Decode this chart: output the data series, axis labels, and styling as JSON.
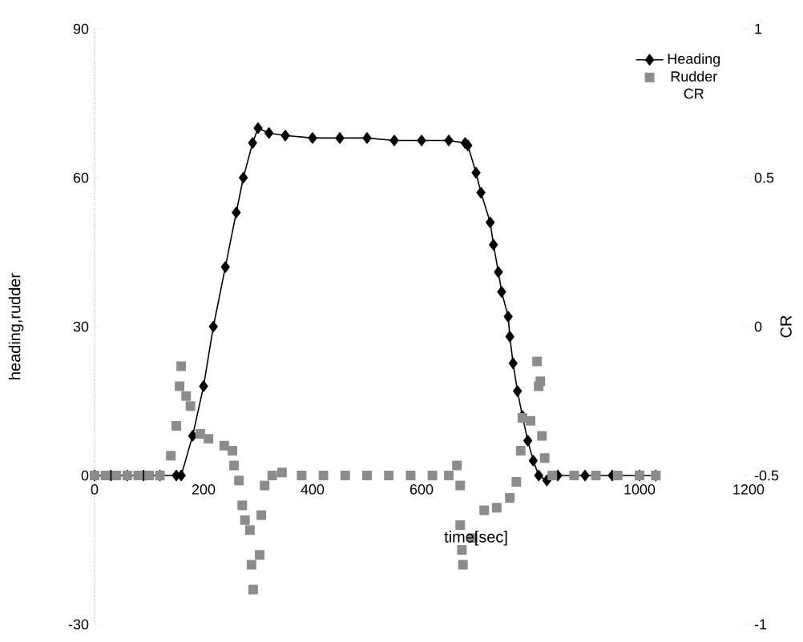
{
  "chart_data": {
    "type": "line",
    "xlabel": "time[sec]",
    "ylabel": "heading,rudder",
    "y2label": "CR",
    "xlim": [
      0,
      1200
    ],
    "xticks": [
      0,
      200,
      400,
      600,
      1000,
      1200
    ],
    "ylim": [
      -30,
      90
    ],
    "yticks": [
      -30,
      0,
      30,
      60,
      90
    ],
    "y2lim": [
      -1,
      1
    ],
    "y2ticks": [
      -1,
      -0.5,
      0,
      0.5,
      1
    ],
    "legend": "top right",
    "grid": false,
    "annotations": [
      "CR"
    ],
    "series": [
      {
        "name": "Heading",
        "marker": "diamond",
        "color": "#000000",
        "x": [
          0,
          30,
          60,
          90,
          120,
          150,
          159,
          180,
          200,
          218,
          240,
          260,
          273,
          290,
          300,
          320,
          350,
          400,
          450,
          500,
          550,
          600,
          650,
          680,
          685,
          700,
          709,
          726,
          732,
          741,
          747,
          759,
          762,
          768,
          776,
          785,
          795,
          805,
          815,
          830,
          850,
          900,
          950,
          1000,
          1030
        ],
        "values": [
          0,
          0,
          0,
          0,
          0,
          0,
          0,
          8,
          18,
          30,
          42,
          53,
          60,
          67,
          70,
          69,
          68.5,
          68,
          68,
          68,
          67.5,
          67.5,
          67.5,
          67,
          66.5,
          61,
          57,
          51,
          46.5,
          41,
          37,
          32,
          28,
          22.6,
          17,
          12,
          7,
          3,
          0,
          -1,
          0,
          0,
          0,
          0,
          0
        ]
      },
      {
        "name": "Rudder",
        "type": "scatter",
        "marker": "square",
        "color": "#8c8c8c",
        "x": [
          0,
          20,
          40,
          60,
          80,
          100,
          120,
          140,
          150,
          156,
          159,
          168,
          176,
          194,
          209,
          238,
          253,
          256,
          265,
          271,
          276,
          285,
          288,
          291,
          303,
          306,
          312,
          326,
          344,
          380,
          420,
          460,
          500,
          540,
          580,
          620,
          650,
          665,
          671,
          671,
          674,
          676,
          694,
          715,
          738,
          762,
          774,
          782,
          785,
          800,
          812,
          815,
          818,
          821,
          826,
          840,
          880,
          920,
          960,
          1000,
          1030
        ],
        "values": [
          0,
          0,
          0,
          0,
          0,
          0,
          0,
          4,
          10,
          18,
          22,
          16,
          14,
          8.4,
          7.4,
          6,
          5,
          2,
          -1,
          -6,
          -9,
          -11,
          -18,
          -23,
          -16,
          -8,
          -2,
          0,
          0.6,
          0,
          0,
          0,
          0,
          0,
          0,
          0,
          0,
          2,
          -2,
          -10,
          -15,
          -18,
          -12.6,
          -7,
          -6.5,
          -4.5,
          -1.3,
          5,
          11.6,
          11,
          23,
          18,
          19,
          8,
          3.5,
          0,
          0,
          0,
          0,
          0,
          0
        ]
      }
    ]
  }
}
